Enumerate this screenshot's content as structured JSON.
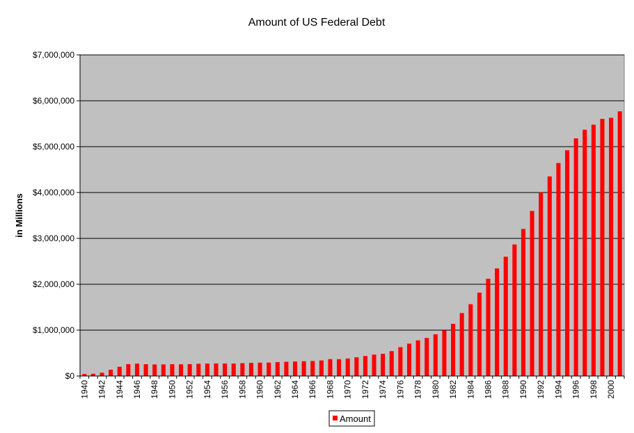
{
  "chart_data": {
    "type": "bar",
    "title": "Amount of US Federal Debt",
    "xlabel": "",
    "ylabel": "in Millions",
    "ylim": [
      0,
      7000000
    ],
    "yticks": [
      0,
      1000000,
      2000000,
      3000000,
      4000000,
      5000000,
      6000000,
      7000000
    ],
    "ytick_labels": [
      "$0",
      "$1,000,000",
      "$2,000,000",
      "$3,000,000",
      "$4,000,000",
      "$5,000,000",
      "$6,000,000",
      "$7,000,000"
    ],
    "grid": true,
    "plot_background": "#c0c0c0",
    "bar_color": "#ff0000",
    "legend_position": "bottom",
    "x_tick_labels_every": 2,
    "categories": [
      "1940",
      "1941",
      "1942",
      "1943",
      "1944",
      "1945",
      "1946",
      "1947",
      "1948",
      "1949",
      "1950",
      "1951",
      "1952",
      "1953",
      "1954",
      "1955",
      "1956",
      "1957",
      "1958",
      "1959",
      "1960",
      "1961",
      "1962",
      "1963",
      "1964",
      "1965",
      "1966",
      "1967",
      "1968",
      "1969",
      "1970",
      "1971",
      "1972",
      "1973",
      "1974",
      "1975",
      "1976",
      "1977",
      "1978",
      "1979",
      "1980",
      "1981",
      "1982",
      "1983",
      "1984",
      "1985",
      "1986",
      "1987",
      "1988",
      "1989",
      "1990",
      "1991",
      "1992",
      "1993",
      "1994",
      "1995",
      "1996",
      "1997",
      "1998",
      "1999",
      "2000",
      "2001"
    ],
    "series": [
      {
        "name": "Amount",
        "values": [
          43000,
          49000,
          72000,
          137000,
          201000,
          259000,
          270000,
          257000,
          252000,
          253000,
          257000,
          255000,
          259000,
          266000,
          271000,
          274000,
          273000,
          272000,
          280000,
          287000,
          291000,
          293000,
          303000,
          310000,
          316000,
          322000,
          328000,
          340000,
          368000,
          366000,
          381000,
          408000,
          436000,
          466000,
          484000,
          542000,
          629000,
          706000,
          777000,
          829000,
          909000,
          995000,
          1137000,
          1372000,
          1565000,
          1817000,
          2120000,
          2346000,
          2601000,
          2868000,
          3206000,
          3598000,
          4002000,
          4351000,
          4643000,
          4921000,
          5181000,
          5369000,
          5478000,
          5606000,
          5629000,
          5770000
        ]
      }
    ]
  }
}
